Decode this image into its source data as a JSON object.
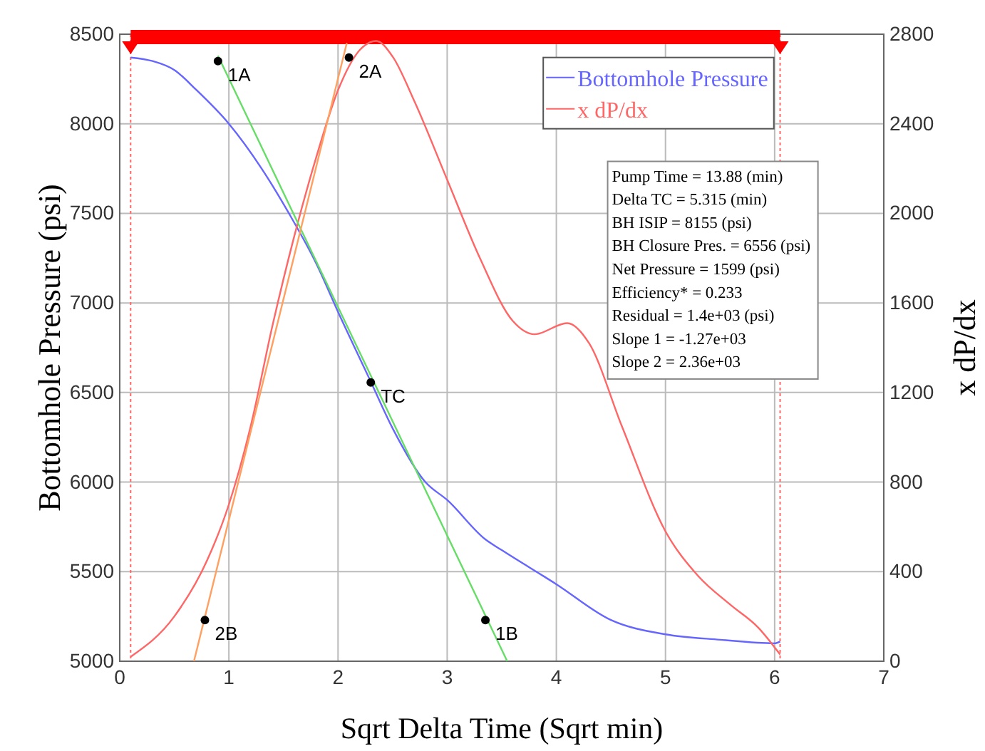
{
  "chart_data": {
    "type": "line",
    "xlabel": "Sqrt Delta Time (Sqrt min)",
    "ylabel": "Bottomhole Pressure (psi)",
    "y2label": "x dP/dx",
    "xlim": [
      0,
      7
    ],
    "xticks": [
      0,
      1,
      2,
      3,
      4,
      5,
      6,
      7
    ],
    "ylim": [
      5000,
      8500
    ],
    "yticks": [
      5000,
      5500,
      6000,
      6500,
      7000,
      7500,
      8000,
      8500
    ],
    "y2lim": [
      0,
      2800
    ],
    "y2ticks": [
      0,
      400,
      800,
      1200,
      1600,
      2000,
      2400,
      2800
    ],
    "grid": true,
    "legend": "top right",
    "marker": "none",
    "line_style": "solid",
    "series": [
      {
        "name": "Bottomhole Pressure",
        "color": "#6666ff",
        "x": [
          0.1,
          0.3,
          0.5,
          0.7,
          1,
          1.3,
          1.55,
          1.8,
          2,
          2.3,
          2.5,
          2.8,
          3,
          3.35,
          3.5,
          4,
          4.5,
          5,
          5.5,
          6,
          6.05
        ],
        "values": [
          8370,
          8350,
          8300,
          8190,
          8000,
          7750,
          7500,
          7220,
          6950,
          6560,
          6300,
          6000,
          5900,
          5680,
          5620,
          5430,
          5230,
          5150,
          5120,
          5100,
          5110
        ]
      },
      {
        "name": "x dP/dx",
        "color": "#ff6666",
        "axis": "y2",
        "x": [
          0.1,
          0.5,
          0.8,
          1,
          1.2,
          1.4,
          1.6,
          1.8,
          2,
          2.2,
          2.35,
          2.5,
          2.7,
          3,
          3.3,
          3.6,
          3.8,
          4.1,
          4.3,
          4.6,
          5,
          5.3,
          5.6,
          5.85,
          6.05
        ],
        "values": [
          20,
          200,
          450,
          700,
          1050,
          1500,
          1900,
          2250,
          2550,
          2730,
          2770,
          2700,
          2500,
          2150,
          1800,
          1520,
          1460,
          1510,
          1420,
          1050,
          580,
          380,
          250,
          150,
          30
        ]
      },
      {
        "color": "#66dd66",
        "x": [
          0.9,
          3.55
        ],
        "values": [
          8380,
          5000
        ]
      },
      {
        "color": "#ffa060",
        "x": [
          0.68,
          2.08
        ],
        "values": [
          5000,
          8450
        ]
      },
      {
        "type": "scatter",
        "marker": "circle",
        "color": "#000000",
        "x": [
          0.9,
          2.1,
          2.3,
          3.35,
          0.78
        ],
        "values": [
          8350,
          8370,
          6556,
          5230,
          5230
        ]
      }
    ],
    "ref_lines": [
      {
        "axis": "x",
        "value": 0.1,
        "color": "#ff6666",
        "line_style": "dotted"
      },
      {
        "axis": "x",
        "value": 6.05,
        "color": "#ff6666",
        "line_style": "dotted"
      }
    ],
    "annotations": [
      {
        "text": "1A",
        "x": 0.9,
        "y": 8350
      },
      {
        "text": "2A",
        "x": 2.1,
        "y": 8370
      },
      {
        "text": "TC",
        "x": 2.3,
        "y": 6556
      },
      {
        "text": "1B",
        "x": 3.35,
        "y": 5230
      },
      {
        "text": "2B",
        "x": 0.78,
        "y": 5230
      },
      "Pump Time = 13.88  (min)",
      "Delta TC = 5.315  (min)",
      "BH ISIP = 8155  (psi)",
      "BH Closure Pres.  = 6556  (psi)",
      "Net Pressure = 1599  (psi)",
      "Efficiency* = 0.233",
      "Residual = 1.4e+03  (psi)",
      "Slope 1 = -1.27e+03",
      "Slope 2 = 2.36e+03"
    ]
  }
}
